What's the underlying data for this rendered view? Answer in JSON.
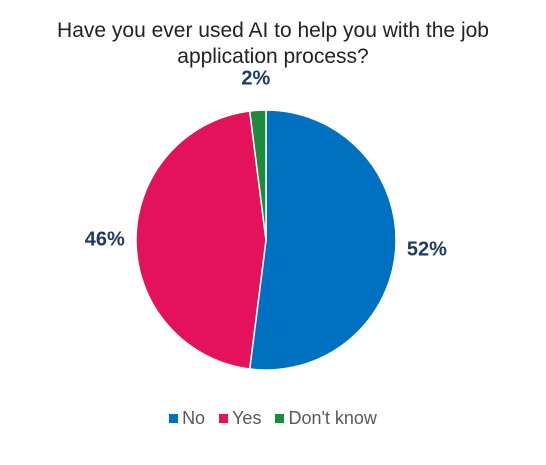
{
  "chart_data": {
    "type": "pie",
    "title": "Have you ever used AI to help you with the job application process?",
    "categories": [
      "No",
      "Yes",
      "Don't know"
    ],
    "values": [
      52,
      46,
      2
    ],
    "value_labels": [
      "52%",
      "46%",
      "2%"
    ],
    "colors": [
      "#0070c0",
      "#e3125a",
      "#1e8a3c"
    ],
    "legend": "bottom"
  }
}
